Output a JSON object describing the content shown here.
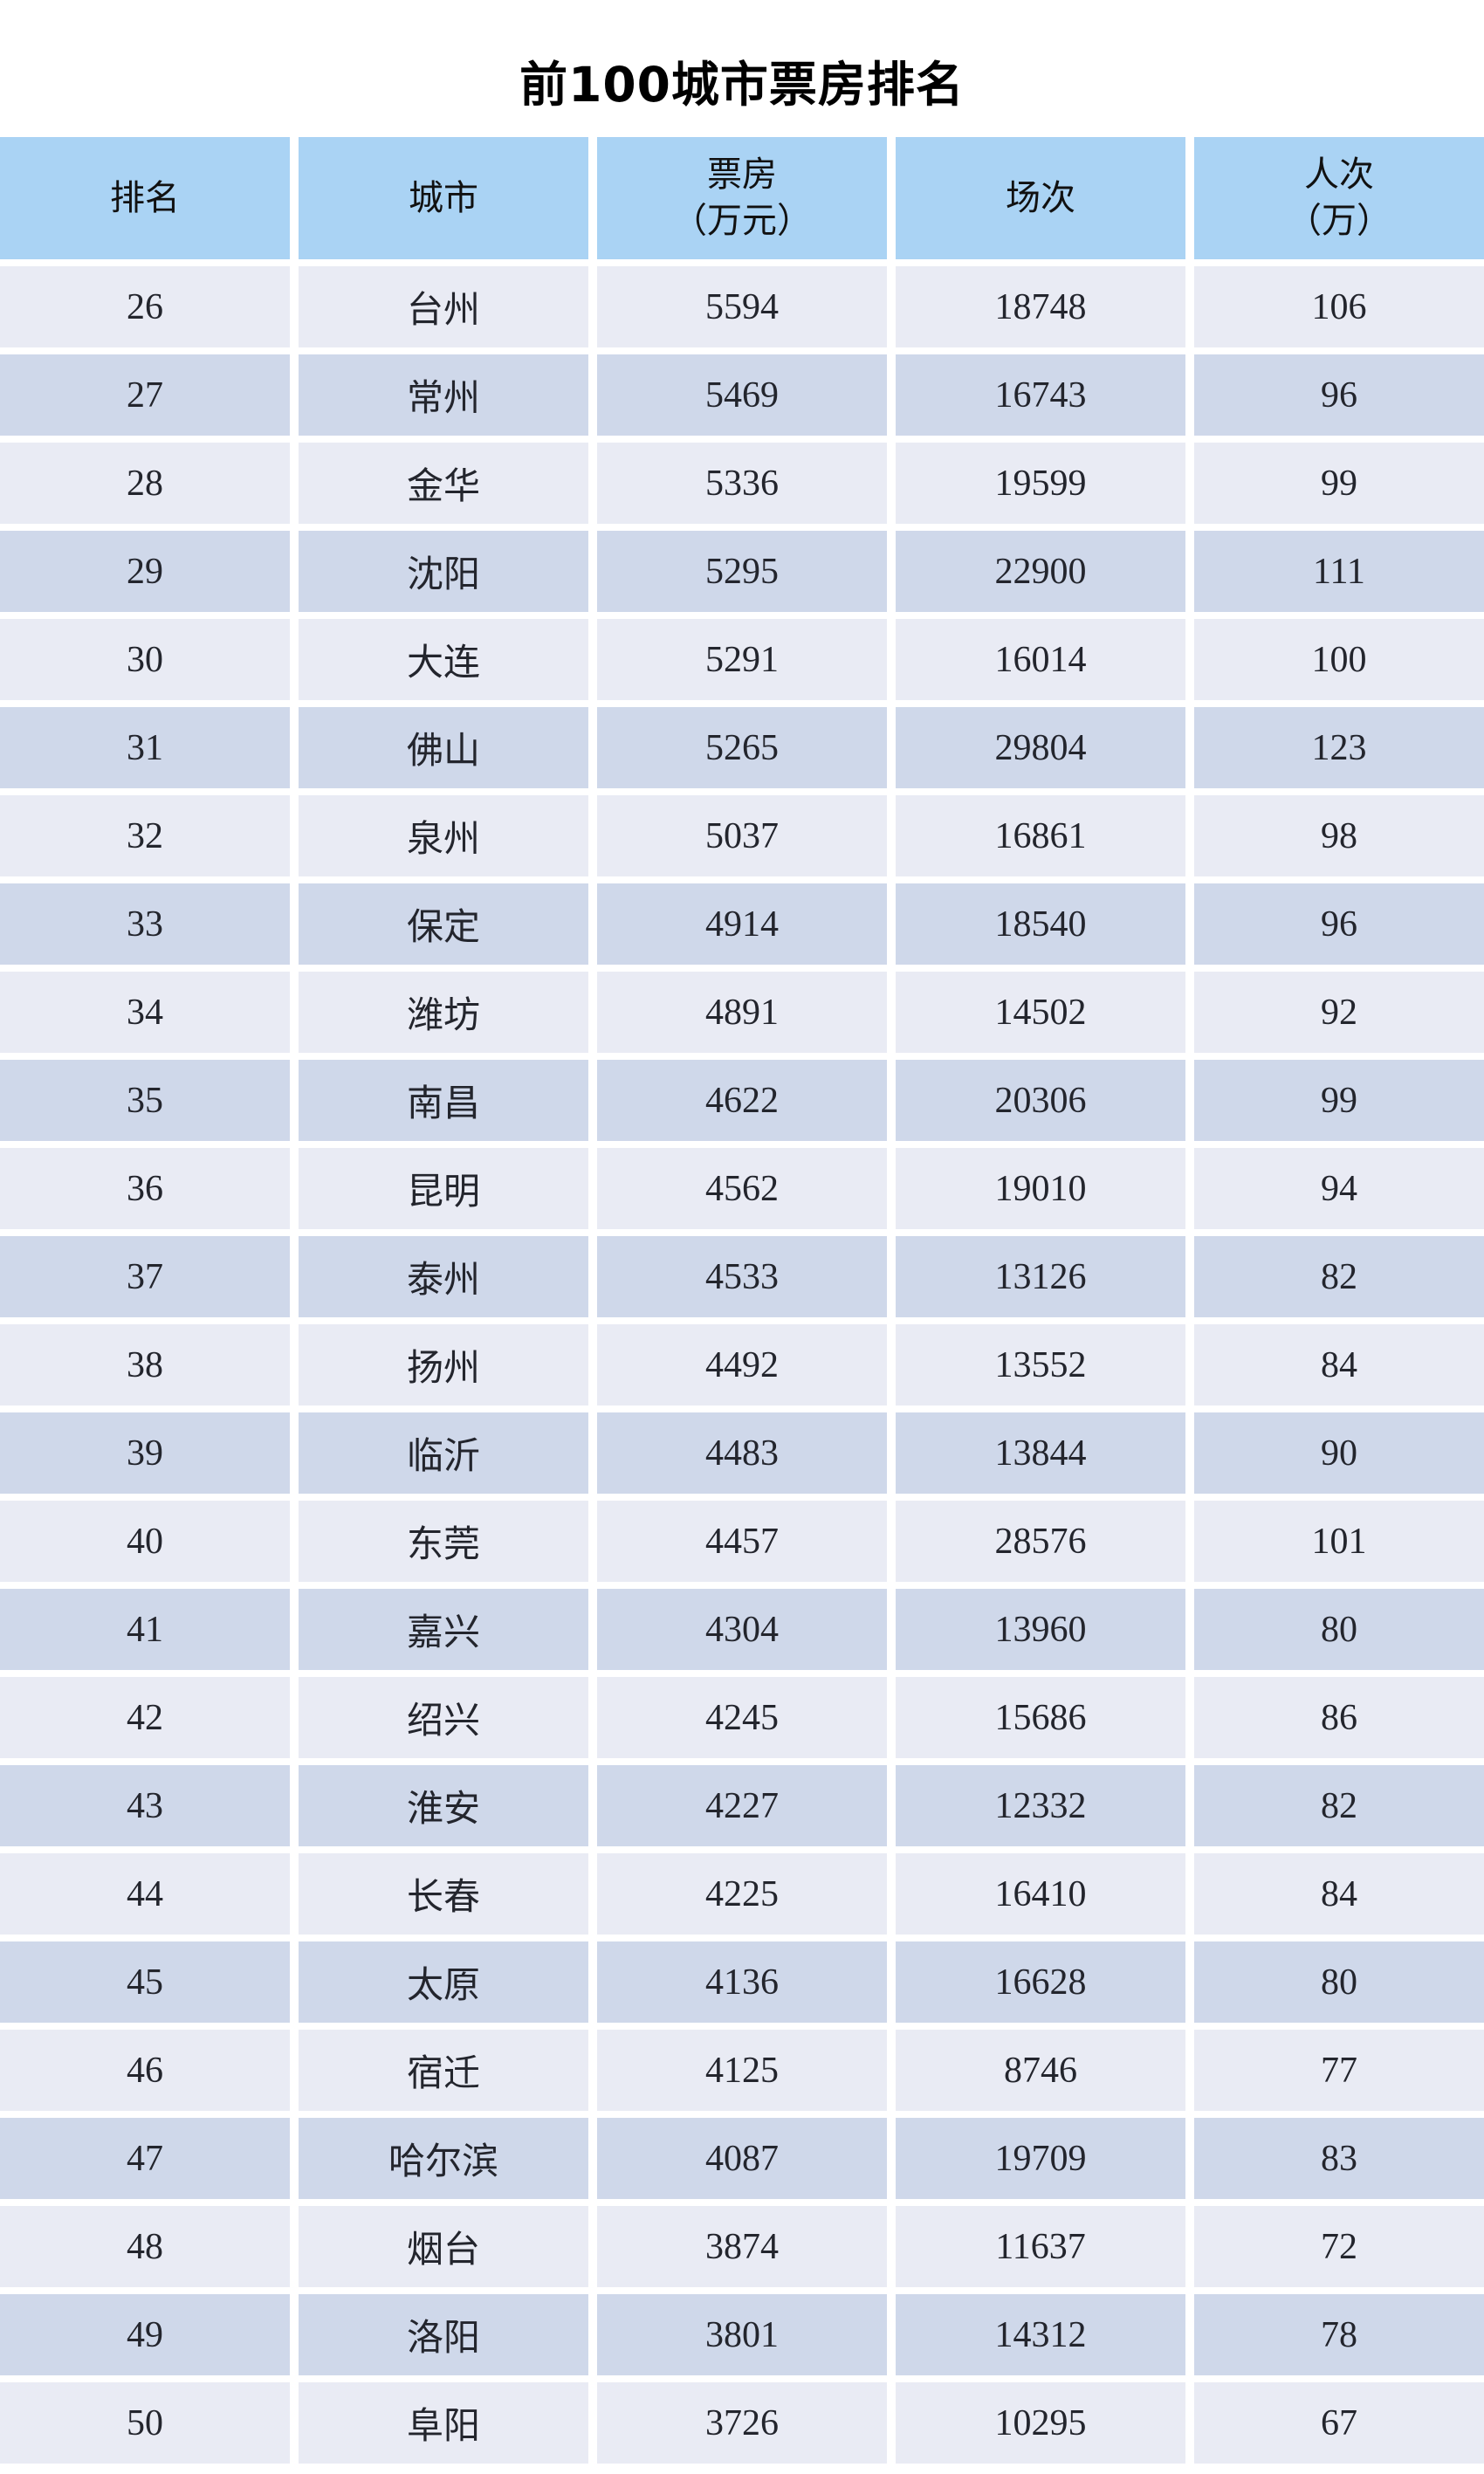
{
  "title": "前100城市票房排名",
  "colors": {
    "page_bg": "#ffffff",
    "title_color": "#000000",
    "header_bg": "#aad3f4",
    "row_light_bg": "#e9ebf4",
    "row_dark_bg": "#cfd8ea",
    "text": "#23252d"
  },
  "chart_data": {
    "type": "table",
    "title": "前100城市票房排名",
    "columns": [
      "排名",
      "城市",
      "票房（万元）",
      "场次",
      "人次（万）"
    ],
    "header_lines": [
      [
        "排名"
      ],
      [
        "城市"
      ],
      [
        "票房",
        "（万元）"
      ],
      [
        "场次"
      ],
      [
        "人次",
        "（万）"
      ]
    ],
    "rows": [
      [
        26,
        "台州",
        5594,
        18748,
        106
      ],
      [
        27,
        "常州",
        5469,
        16743,
        96
      ],
      [
        28,
        "金华",
        5336,
        19599,
        99
      ],
      [
        29,
        "沈阳",
        5295,
        22900,
        111
      ],
      [
        30,
        "大连",
        5291,
        16014,
        100
      ],
      [
        31,
        "佛山",
        5265,
        29804,
        123
      ],
      [
        32,
        "泉州",
        5037,
        16861,
        98
      ],
      [
        33,
        "保定",
        4914,
        18540,
        96
      ],
      [
        34,
        "潍坊",
        4891,
        14502,
        92
      ],
      [
        35,
        "南昌",
        4622,
        20306,
        99
      ],
      [
        36,
        "昆明",
        4562,
        19010,
        94
      ],
      [
        37,
        "泰州",
        4533,
        13126,
        82
      ],
      [
        38,
        "扬州",
        4492,
        13552,
        84
      ],
      [
        39,
        "临沂",
        4483,
        13844,
        90
      ],
      [
        40,
        "东莞",
        4457,
        28576,
        101
      ],
      [
        41,
        "嘉兴",
        4304,
        13960,
        80
      ],
      [
        42,
        "绍兴",
        4245,
        15686,
        86
      ],
      [
        43,
        "淮安",
        4227,
        12332,
        82
      ],
      [
        44,
        "长春",
        4225,
        16410,
        84
      ],
      [
        45,
        "太原",
        4136,
        16628,
        80
      ],
      [
        46,
        "宿迁",
        4125,
        8746,
        77
      ],
      [
        47,
        "哈尔滨",
        4087,
        19709,
        83
      ],
      [
        48,
        "烟台",
        3874,
        11637,
        72
      ],
      [
        49,
        "洛阳",
        3801,
        14312,
        78
      ],
      [
        50,
        "阜阳",
        3726,
        10295,
        67
      ]
    ]
  }
}
